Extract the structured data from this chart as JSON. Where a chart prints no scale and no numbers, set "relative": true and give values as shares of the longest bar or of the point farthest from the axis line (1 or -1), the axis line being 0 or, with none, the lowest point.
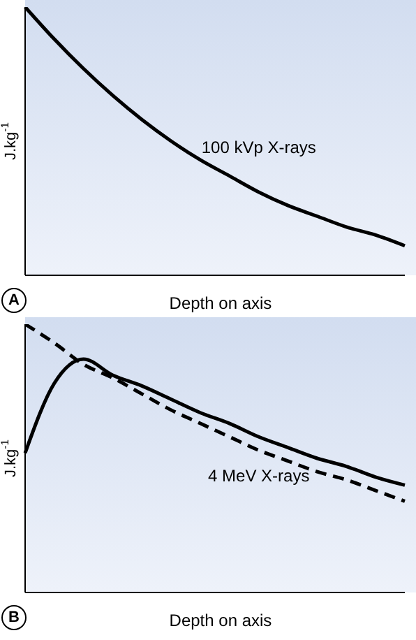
{
  "chart_data": [
    {
      "type": "line",
      "relative": true,
      "xlabel": "Depth on axis",
      "ylabel": "J.kg$^{-1}$",
      "annotations": [
        "A"
      ],
      "legend": false,
      "grid": false,
      "marker": "none",
      "categories": [
        null,
        null,
        null,
        null,
        null,
        null,
        null,
        null,
        null,
        null,
        null,
        null,
        null,
        null
      ],
      "series": [
        {
          "name": "100 kVp X-rays",
          "color": "#000000",
          "line_style": "solid",
          "values": [
            1,
            0.88,
            0.77,
            0.67,
            0.58,
            0.5,
            0.43,
            0.37,
            0.31,
            0.26,
            0.22,
            0.18,
            0.15,
            0.11
          ]
        }
      ]
    },
    {
      "type": "line",
      "relative": true,
      "xlabel": "Depth on axis",
      "ylabel": "J.kg$^{-1}$",
      "annotations": [
        "B"
      ],
      "legend": false,
      "grid": false,
      "marker": "none",
      "categories": [
        null,
        null,
        null,
        null,
        null,
        null,
        null,
        null,
        null,
        null,
        null,
        null,
        null,
        null
      ],
      "series": [
        {
          "color": "#000000",
          "line_style": "dashed",
          "values": [
            1,
            0.93,
            0.85,
            0.8,
            0.74,
            0.68,
            0.63,
            0.58,
            0.53,
            0.49,
            0.45,
            0.42,
            0.38,
            0.34
          ]
        },
        {
          "name": "4 MeV X-rays",
          "color": "#000000",
          "line_style": "solid",
          "values": [
            0.52,
            0.78,
            0.87,
            0.81,
            0.77,
            0.72,
            0.67,
            0.63,
            0.58,
            0.54,
            0.5,
            0.47,
            0.43,
            0.4
          ]
        }
      ]
    }
  ]
}
